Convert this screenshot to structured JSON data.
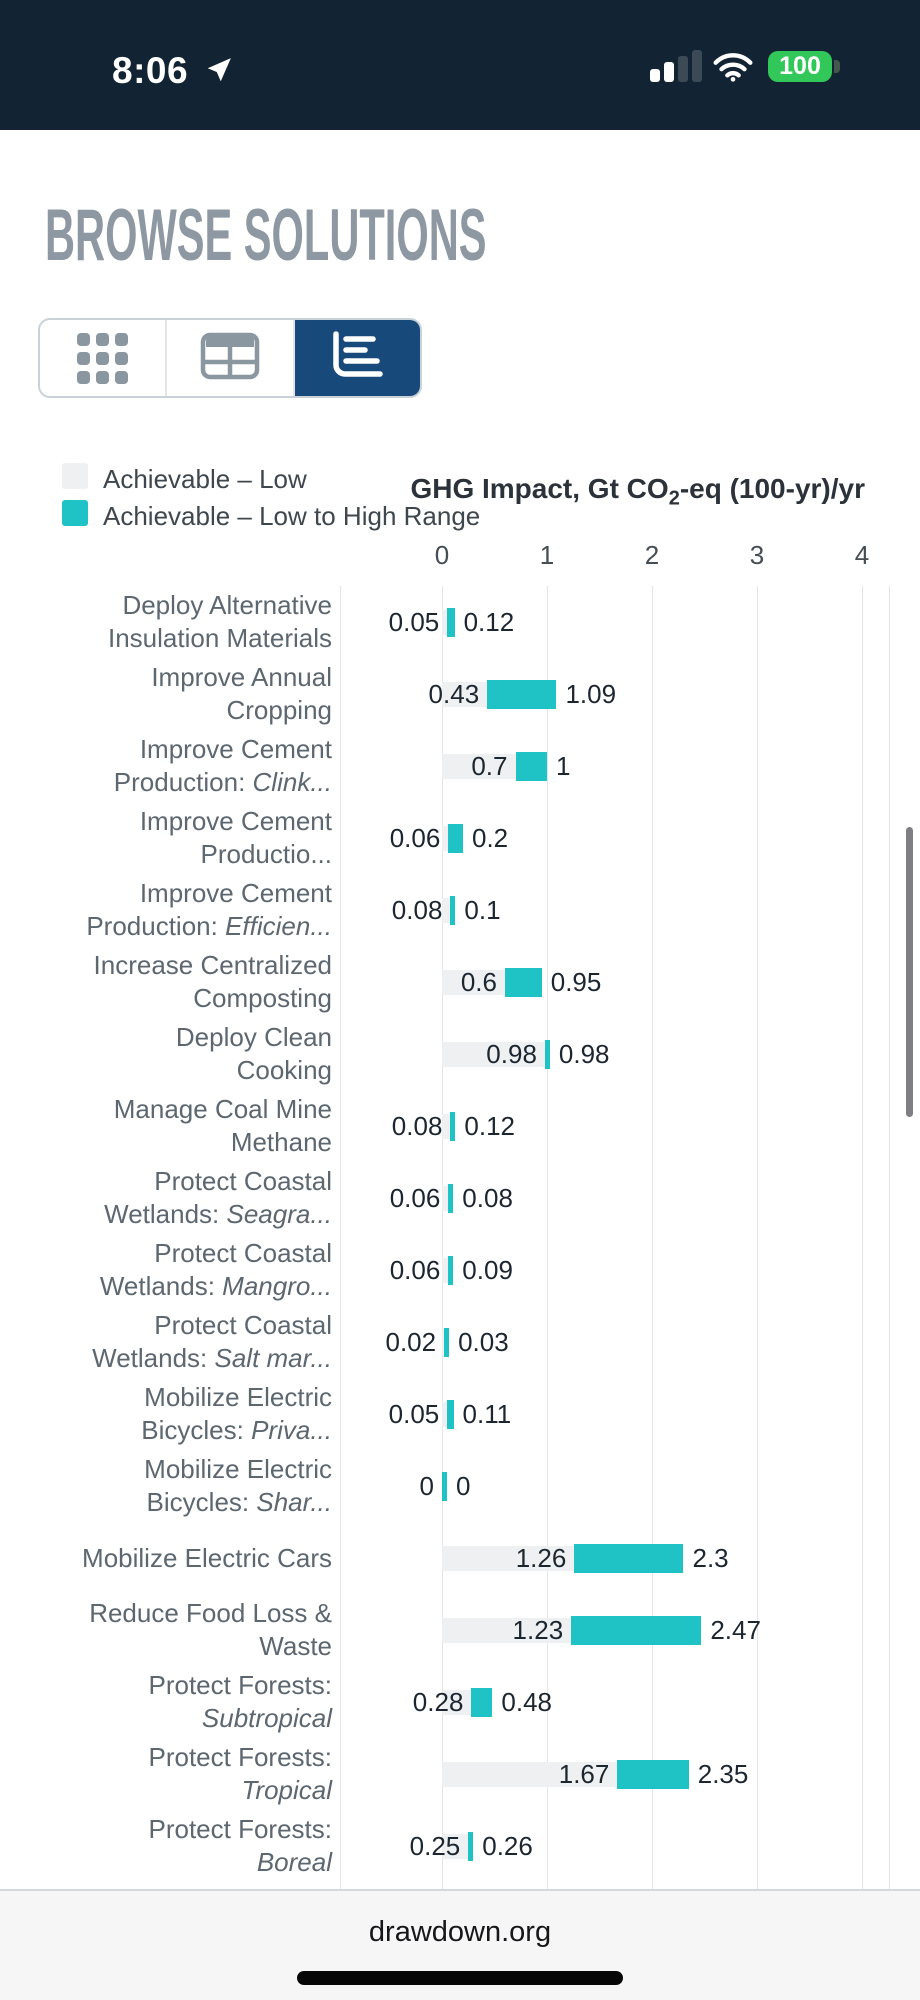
{
  "status_bar": {
    "time": "8:06",
    "battery_level": "100"
  },
  "page": {
    "title": "BROWSE SOLUTIONS"
  },
  "view_toggle": {
    "buttons": [
      {
        "id": "grid-view",
        "icon": "grid-icon",
        "active": false
      },
      {
        "id": "table-view",
        "icon": "table-icon",
        "active": false
      },
      {
        "id": "chart-view",
        "icon": "bar-chart-icon",
        "active": true
      }
    ]
  },
  "legend": {
    "items": [
      {
        "label": "Achievable – Low",
        "color": "#eff0f1"
      },
      {
        "label": "Achievable – Low to High Range",
        "color": "#1fc3c6"
      }
    ]
  },
  "chart_data": {
    "type": "bar",
    "orientation": "horizontal",
    "title_pre": "GHG Impact, Gt CO",
    "title_sub": "2",
    "title_post": "-eq (100-yr)/yr",
    "xlabel": "GHG Impact, Gt CO2-eq (100-yr)/yr",
    "x_ticks": [
      "0",
      "1",
      "2",
      "3",
      "4"
    ],
    "xlim": [
      0,
      4.26
    ],
    "grid": true,
    "legend_position": "top-left",
    "series_meta": [
      {
        "name": "Achievable – Low",
        "color": "#eff0f1"
      },
      {
        "name": "Achievable – Low to High Range",
        "color": "#1fc3c6"
      }
    ],
    "rows": [
      {
        "label_lines": [
          [
            {
              "t": "Deploy Alternative"
            }
          ],
          [
            {
              "t": "Insulation Materials"
            }
          ]
        ],
        "low": 0.05,
        "high": 0.12,
        "low_label": "0.05",
        "high_label": "0.12"
      },
      {
        "label_lines": [
          [
            {
              "t": "Improve Annual"
            }
          ],
          [
            {
              "t": "Cropping"
            }
          ]
        ],
        "low": 0.43,
        "high": 1.09,
        "low_label": "0.43",
        "high_label": "1.09"
      },
      {
        "label_lines": [
          [
            {
              "t": "Improve Cement"
            }
          ],
          [
            {
              "t": "Production: "
            },
            {
              "t": "Clink...",
              "i": true
            }
          ]
        ],
        "low": 0.7,
        "high": 1,
        "low_label": "0.7",
        "high_label": "1"
      },
      {
        "label_lines": [
          [
            {
              "t": "Improve Cement"
            }
          ],
          [
            {
              "t": "Productio..."
            }
          ]
        ],
        "low": 0.06,
        "high": 0.2,
        "low_label": "0.06",
        "high_label": "0.2"
      },
      {
        "label_lines": [
          [
            {
              "t": "Improve Cement"
            }
          ],
          [
            {
              "t": "Production: "
            },
            {
              "t": "Efficien...",
              "i": true
            }
          ]
        ],
        "low": 0.08,
        "high": 0.1,
        "low_label": "0.08",
        "high_label": "0.1"
      },
      {
        "label_lines": [
          [
            {
              "t": "Increase Centralized"
            }
          ],
          [
            {
              "t": "Composting"
            }
          ]
        ],
        "low": 0.6,
        "high": 0.95,
        "low_label": "0.6",
        "high_label": "0.95"
      },
      {
        "label_lines": [
          [
            {
              "t": "Deploy Clean"
            }
          ],
          [
            {
              "t": "Cooking"
            }
          ]
        ],
        "low": 0.98,
        "high": 0.98,
        "low_label": "0.98",
        "high_label": "0.98"
      },
      {
        "label_lines": [
          [
            {
              "t": "Manage Coal Mine"
            }
          ],
          [
            {
              "t": "Methane"
            }
          ]
        ],
        "low": 0.08,
        "high": 0.12,
        "low_label": "0.08",
        "high_label": "0.12"
      },
      {
        "label_lines": [
          [
            {
              "t": "Protect Coastal"
            }
          ],
          [
            {
              "t": "Wetlands: "
            },
            {
              "t": "Seagra...",
              "i": true
            }
          ]
        ],
        "low": 0.06,
        "high": 0.08,
        "low_label": "0.06",
        "high_label": "0.08"
      },
      {
        "label_lines": [
          [
            {
              "t": "Protect Coastal"
            }
          ],
          [
            {
              "t": "Wetlands: "
            },
            {
              "t": "Mangro...",
              "i": true
            }
          ]
        ],
        "low": 0.06,
        "high": 0.09,
        "low_label": "0.06",
        "high_label": "0.09"
      },
      {
        "label_lines": [
          [
            {
              "t": "Protect Coastal"
            }
          ],
          [
            {
              "t": "Wetlands: "
            },
            {
              "t": "Salt mar...",
              "i": true
            }
          ]
        ],
        "low": 0.02,
        "high": 0.03,
        "low_label": "0.02",
        "high_label": "0.03"
      },
      {
        "label_lines": [
          [
            {
              "t": "Mobilize Electric"
            }
          ],
          [
            {
              "t": "Bicycles: "
            },
            {
              "t": "Priva...",
              "i": true
            }
          ]
        ],
        "low": 0.05,
        "high": 0.11,
        "low_label": "0.05",
        "high_label": "0.11"
      },
      {
        "label_lines": [
          [
            {
              "t": "Mobilize Electric"
            }
          ],
          [
            {
              "t": "Bicycles: "
            },
            {
              "t": "Shar...",
              "i": true
            }
          ]
        ],
        "low": 0,
        "high": 0,
        "low_label": "0",
        "high_label": "0"
      },
      {
        "label_lines": [
          [
            {
              "t": "Mobilize Electric Cars"
            }
          ]
        ],
        "low": 1.26,
        "high": 2.3,
        "low_label": "1.26",
        "high_label": "2.3"
      },
      {
        "label_lines": [
          [
            {
              "t": "Reduce Food Loss &"
            }
          ],
          [
            {
              "t": "Waste"
            }
          ]
        ],
        "low": 1.23,
        "high": 2.47,
        "low_label": "1.23",
        "high_label": "2.47"
      },
      {
        "label_lines": [
          [
            {
              "t": "Protect Forests:"
            }
          ],
          [
            {
              "t": "Subtropical",
              "i": true
            }
          ]
        ],
        "low": 0.28,
        "high": 0.48,
        "low_label": "0.28",
        "high_label": "0.48"
      },
      {
        "label_lines": [
          [
            {
              "t": "Protect Forests:"
            }
          ],
          [
            {
              "t": "Tropical",
              "i": true
            }
          ]
        ],
        "low": 1.67,
        "high": 2.35,
        "low_label": "1.67",
        "high_label": "2.35"
      },
      {
        "label_lines": [
          [
            {
              "t": "Protect Forests:"
            }
          ],
          [
            {
              "t": "Boreal",
              "i": true
            }
          ]
        ],
        "low": 0.25,
        "high": 0.26,
        "low_label": "0.25",
        "high_label": "0.26"
      }
    ]
  },
  "footer": {
    "url": "drawdown.org"
  },
  "colors": {
    "status_bar_bg": "#122433",
    "battery_green": "#32c759",
    "heading": "#8d98a2",
    "active_button_bg": "#174a7b",
    "inactive_icon": "#8a96a0",
    "bar_low": "#eff0f1",
    "bar_range": "#1fc3c6",
    "gridline": "#e3e6e8",
    "row_label": "#5d6770",
    "value_text": "#1c2630"
  }
}
